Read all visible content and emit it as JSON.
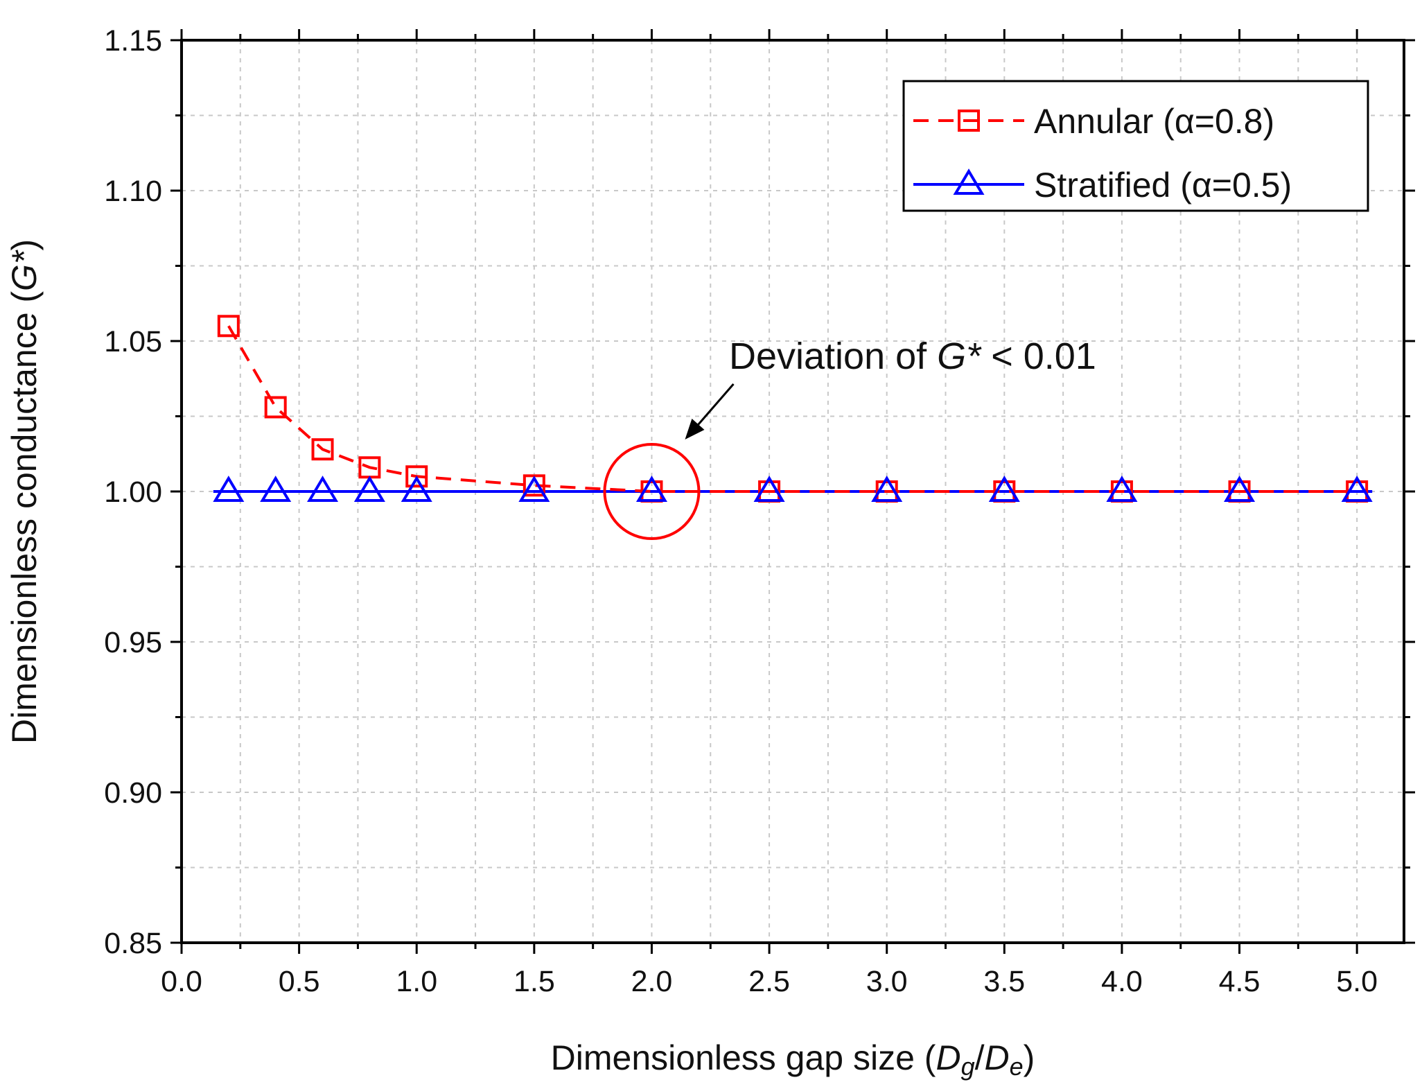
{
  "chart_data": {
    "type": "line",
    "title": "",
    "xlabel_parts": [
      "Dimensionless gap size (",
      "D",
      "g",
      "/",
      "D",
      "e",
      ")"
    ],
    "ylabel_parts": [
      "Dimensionless conductance (",
      "G*",
      ")"
    ],
    "xlim": [
      0.0,
      5.2
    ],
    "ylim": [
      0.85,
      1.15
    ],
    "x_ticks": [
      0.0,
      0.5,
      1.0,
      1.5,
      2.0,
      2.5,
      3.0,
      3.5,
      4.0,
      4.5,
      5.0
    ],
    "x_tick_labels": [
      "0.0",
      "0.5",
      "1.0",
      "1.5",
      "2.0",
      "2.5",
      "3.0",
      "3.5",
      "4.0",
      "4.5",
      "5.0"
    ],
    "y_ticks": [
      0.85,
      0.9,
      0.95,
      1.0,
      1.05,
      1.1,
      1.15
    ],
    "y_tick_labels": [
      "0.85",
      "0.90",
      "0.95",
      "1.00",
      "1.05",
      "1.10",
      "1.15"
    ],
    "grid": true,
    "legend_position": "top-right",
    "series": [
      {
        "name": "Annular (α=0.8)",
        "color": "#ff0000",
        "line_style": "dashed",
        "marker": "square",
        "x": [
          0.2,
          0.4,
          0.6,
          0.8,
          1.0,
          1.5,
          2.0,
          2.5,
          3.0,
          3.5,
          4.0,
          4.5,
          5.0
        ],
        "y": [
          1.055,
          1.028,
          1.014,
          1.008,
          1.005,
          1.002,
          1.0,
          1.0,
          1.0,
          1.0,
          1.0,
          1.0,
          1.0
        ]
      },
      {
        "name": "Stratified (α=0.5)",
        "color": "#0000ff",
        "line_style": "solid",
        "marker": "triangle",
        "x": [
          0.2,
          0.4,
          0.6,
          0.8,
          1.0,
          1.5,
          2.0,
          2.5,
          3.0,
          3.5,
          4.0,
          4.5,
          5.0
        ],
        "y": [
          1.0,
          1.0,
          1.0,
          1.0,
          1.0,
          1.0,
          1.0,
          1.0,
          1.0,
          1.0,
          1.0,
          1.0,
          1.0
        ]
      }
    ],
    "annotation": {
      "text_parts": [
        "Deviation of ",
        "G*",
        " < 0.01"
      ],
      "target_x": 2.0,
      "target_y": 1.0,
      "highlight_color": "#ff0000"
    }
  }
}
